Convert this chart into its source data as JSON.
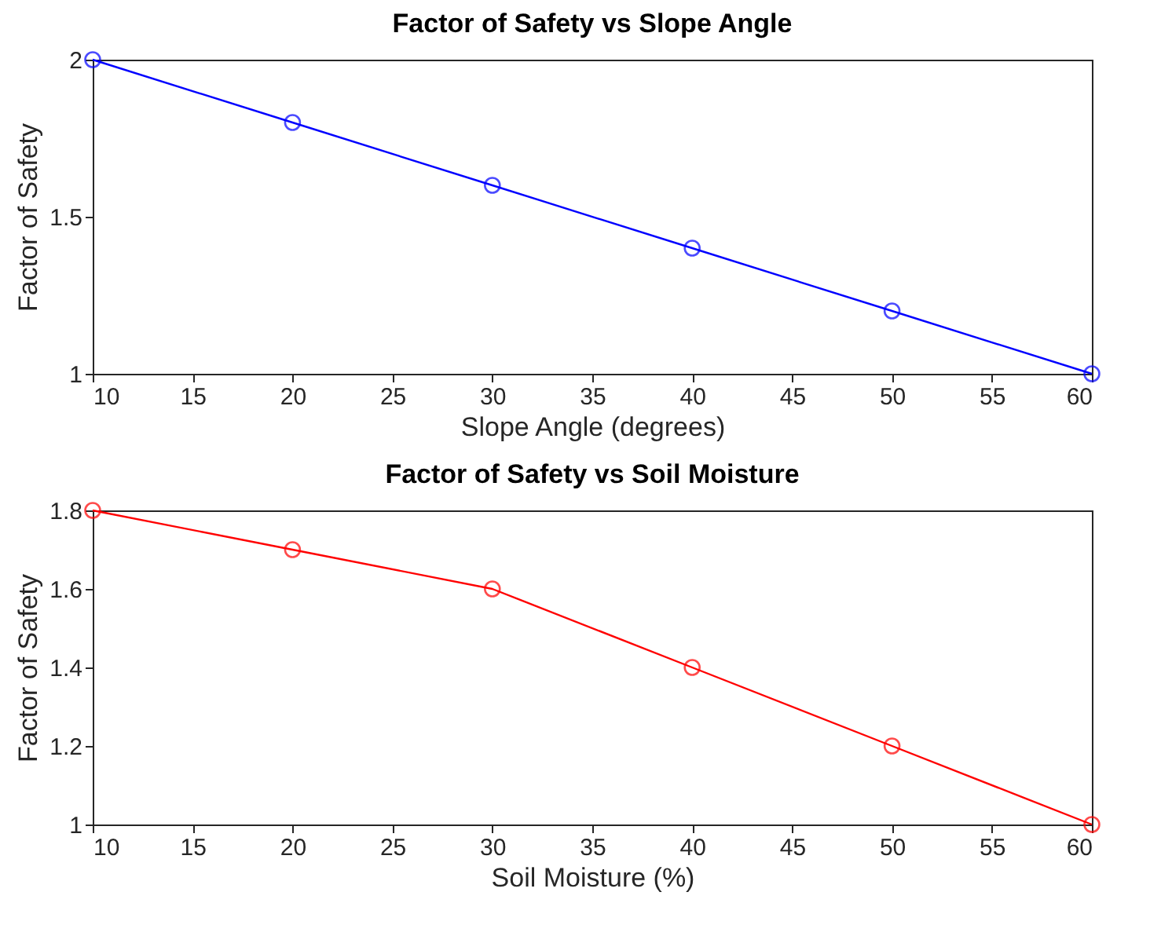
{
  "chart_data": [
    {
      "type": "line",
      "title": "Factor of Safety vs Slope Angle",
      "xlabel": "Slope Angle (degrees)",
      "ylabel": "Factor of Safety",
      "x": [
        10,
        20,
        30,
        40,
        50,
        60
      ],
      "series": [
        {
          "color": "#0000ff",
          "values": [
            2,
            1.8,
            1.6,
            1.4,
            1.2,
            1
          ]
        }
      ],
      "xlim": [
        10,
        60
      ],
      "xticks": [
        10,
        15,
        20,
        25,
        30,
        35,
        40,
        45,
        50,
        55,
        60
      ],
      "ylim": [
        1,
        2
      ],
      "yticks": [
        1,
        1.5,
        2
      ],
      "marker": "circle",
      "line_style": "solid",
      "grid": false
    },
    {
      "type": "line",
      "title": "Factor of Safety vs Soil Moisture",
      "xlabel": "Soil Moisture (%)",
      "ylabel": "Factor of Safety",
      "x": [
        10,
        20,
        30,
        40,
        50,
        60
      ],
      "series": [
        {
          "color": "#ff0000",
          "values": [
            1.8,
            1.7,
            1.6,
            1.4,
            1.2,
            1
          ]
        }
      ],
      "xlim": [
        10,
        60
      ],
      "xticks": [
        10,
        15,
        20,
        25,
        30,
        35,
        40,
        45,
        50,
        55,
        60
      ],
      "ylim": [
        1,
        1.8
      ],
      "yticks": [
        1,
        1.2,
        1.4,
        1.6,
        1.8
      ],
      "marker": "circle",
      "line_style": "solid",
      "grid": false
    }
  ]
}
